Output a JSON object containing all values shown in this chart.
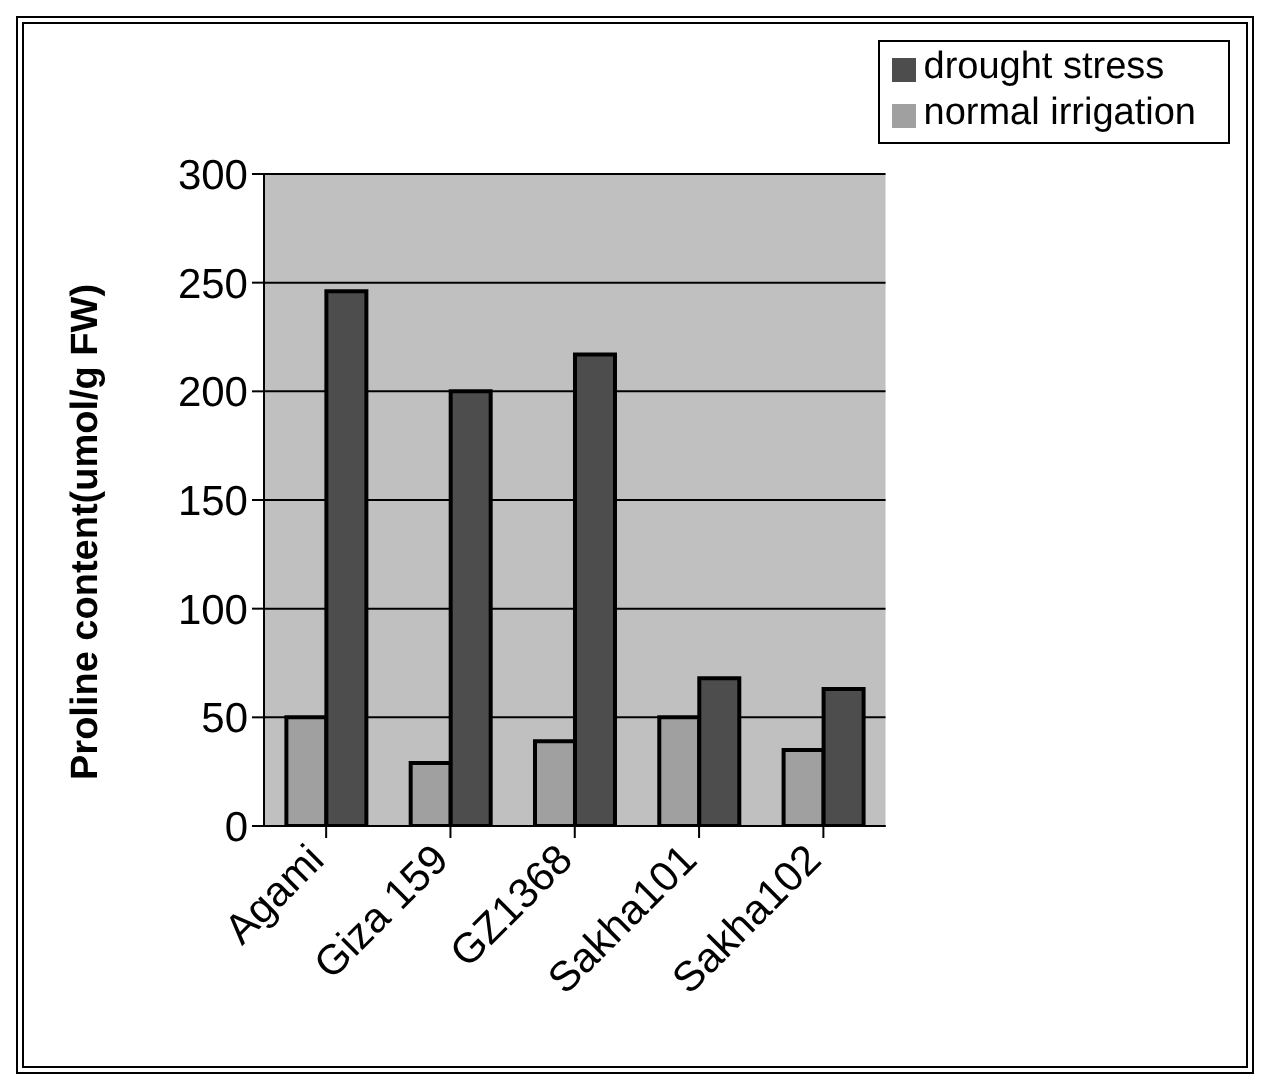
{
  "chart_data": {
    "type": "bar",
    "ylabel": "Proline content(umol/g FW)",
    "categories": [
      "Agami",
      "Giza 159",
      "GZ1368",
      "Sakha101",
      "Sakha102"
    ],
    "series": [
      {
        "name": "normal irrigation",
        "color": "#a0a0a0",
        "values": [
          50,
          29,
          39,
          50,
          35
        ]
      },
      {
        "name": "drought stress",
        "color": "#4d4d4d",
        "values": [
          246,
          200,
          217,
          68,
          63
        ]
      }
    ],
    "ylim": [
      0,
      300
    ],
    "yticks": [
      0,
      50,
      100,
      150,
      200,
      250,
      300
    ],
    "grid": "y",
    "legend": "top right"
  }
}
